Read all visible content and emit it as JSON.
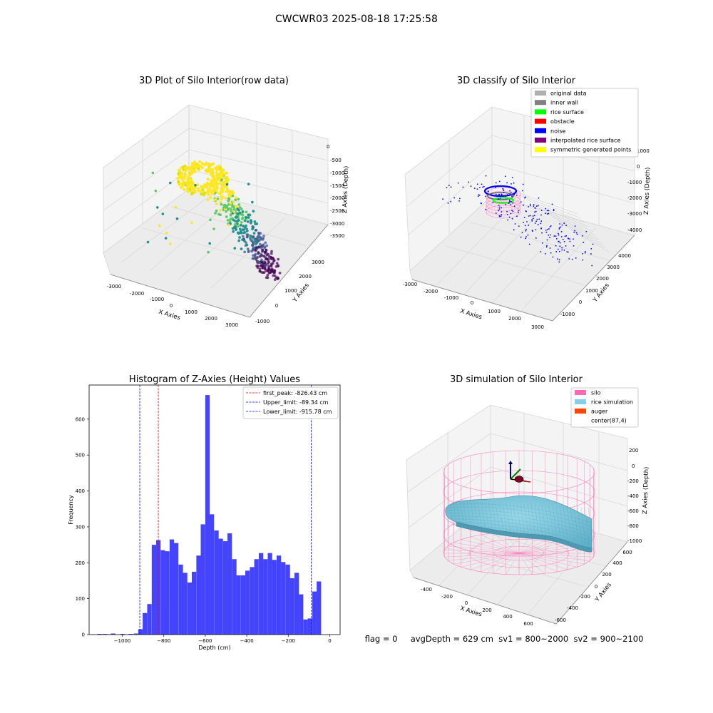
{
  "suptitle": "CWCWR03 2025-08-18 17:25:58",
  "status_line": "flag = 0     avgDepth = 629 cm  sv1 = 800~2000  sv2 = 900~2100",
  "chart_data": [
    {
      "type": "scatter3d",
      "title": "3D Plot of Silo Interior(row data)",
      "xlabel": "X Axies",
      "ylabel": "Y Axies",
      "zlabel": "Z Axies (Depth)",
      "xticks": [
        -3000,
        -2000,
        -1000,
        0,
        1000,
        2000,
        3000
      ],
      "yticks": [
        -1000,
        0,
        1000,
        2000,
        3000
      ],
      "zticks": [
        0,
        -500,
        -1000,
        -1500,
        -2000,
        -2500,
        -3000,
        -3500
      ],
      "colormap": [
        "#fde725",
        "#5ec962",
        "#21918c",
        "#3b528b",
        "#440154"
      ]
    },
    {
      "type": "scatter3d",
      "title": "3D classify of Silo Interior",
      "xlabel": "X Axies",
      "ylabel": "Y Axies",
      "zlabel": "Z Axies (Depth)",
      "xticks": [
        -3000,
        -2000,
        -1000,
        0,
        1000,
        2000,
        3000
      ],
      "yticks": [
        -1000,
        0,
        1000,
        2000,
        3000,
        4000
      ],
      "zticks": [
        1000,
        0,
        -1000,
        -2000,
        -3000,
        -4000
      ],
      "legend_position": "upper-right",
      "legend": [
        {
          "label": "original data",
          "color": "#b0b0b0"
        },
        {
          "label": "inner wall",
          "color": "#808080"
        },
        {
          "label": "rice surface",
          "color": "#00ff00"
        },
        {
          "label": "obstacle",
          "color": "#ff0000"
        },
        {
          "label": "noise",
          "color": "#0000ff"
        },
        {
          "label": "interpolated rice surface",
          "color": "#800080"
        },
        {
          "label": "symmetric generated points",
          "color": "#ffff00"
        }
      ]
    },
    {
      "type": "bar",
      "title": "Histogram of Z-Axies (Height) Values",
      "xlabel": "Depth (cm)",
      "ylabel": "Frequency",
      "xlim": [
        -1160,
        50
      ],
      "ylim": [
        0,
        695
      ],
      "xticks": [
        -1000,
        -800,
        -600,
        -400,
        -200,
        0
      ],
      "yticks": [
        0,
        100,
        200,
        300,
        400,
        500,
        600
      ],
      "bar_color": "#4444ff",
      "bin_width": 21.5,
      "bins_start": [
        -1120,
        -1095,
        -1075,
        -1055,
        -1030,
        -1010,
        -990,
        -970,
        -945,
        -923,
        -902,
        -880,
        -858,
        -837,
        -815,
        -794,
        -772,
        -751,
        -729,
        -708,
        -686,
        -665,
        -643,
        -622,
        -600,
        -579,
        -557,
        -536,
        -514,
        -493,
        -471,
        -450,
        -428,
        -407,
        -385,
        -364,
        -342,
        -321,
        -299,
        -278,
        -256,
        -235,
        -213,
        -192,
        -170,
        -149,
        -127,
        -106,
        -84,
        -63,
        -41,
        -20
      ],
      "counts": [
        2,
        2,
        1,
        3,
        0,
        2,
        0,
        2,
        3,
        15,
        60,
        85,
        250,
        263,
        235,
        232,
        265,
        255,
        195,
        172,
        145,
        175,
        220,
        307,
        667,
        335,
        290,
        267,
        260,
        282,
        210,
        165,
        165,
        178,
        188,
        210,
        227,
        210,
        227,
        208,
        220,
        202,
        195,
        157,
        172,
        112,
        42,
        45,
        120,
        148,
        0,
        0
      ],
      "vlines": [
        {
          "x": -826.43,
          "color": "#ff0000",
          "label": "first_peak: -826.43 cm"
        },
        {
          "x": -89.34,
          "color": "#0000ff",
          "label": "Upper_limit: -89.34 cm"
        },
        {
          "x": -915.78,
          "color": "#0000ff",
          "label": "Lower_limit: -915.78 cm"
        }
      ],
      "legend_position": "upper-right"
    },
    {
      "type": "surface3d",
      "title": "3D simulation of Silo Interior",
      "xlabel": "X Axies",
      "ylabel": "Y Axies",
      "zlabel": "Z Axies (Depth)",
      "xticks": [
        -400,
        -200,
        0,
        200,
        400,
        600
      ],
      "yticks": [
        -600,
        -400,
        -200,
        0,
        200,
        400,
        600
      ],
      "zticks": [
        200,
        0,
        -200,
        -400,
        -600,
        -800,
        -1000
      ],
      "legend_position": "upper-right",
      "legend": [
        {
          "label": "silo",
          "color": "#ff69b4"
        },
        {
          "label": "rice simulation",
          "color": "#87ceeb"
        },
        {
          "label": "auger",
          "color": "#ff4500"
        },
        {
          "label": "center(87,4)",
          "color": "#ffffff"
        }
      ]
    }
  ]
}
